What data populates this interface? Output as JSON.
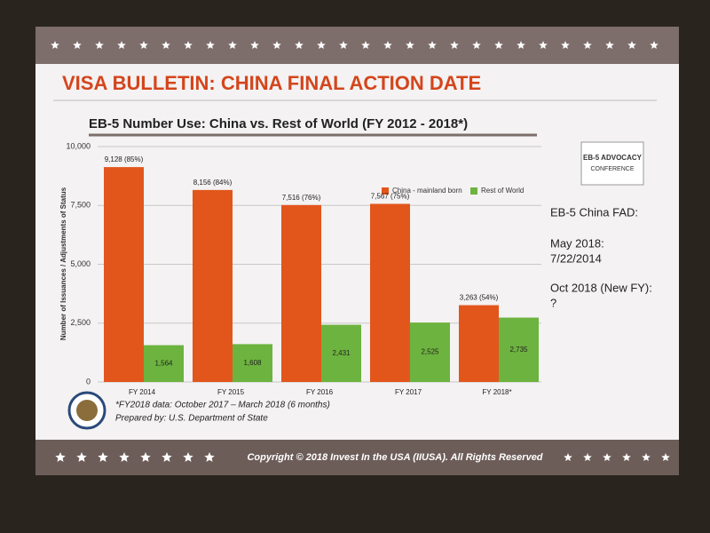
{
  "slide": {
    "title": "VISA BULLETIN: CHINA FINAL ACTION DATE",
    "logo": [
      "EB-5 ADVOCACY",
      "CONFERENCE"
    ],
    "side_notes": [
      "EB-5 China FAD:",
      "May 2018:",
      "7/22/2014",
      "Oct 2018 (New FY):",
      "?"
    ],
    "footnotes": [
      "*FY2018 data: October 2017 – March 2018 (6 months)",
      "Prepared by: U.S. Department of State"
    ],
    "footer": "Copyright © 2018 Invest In the USA (IIUSA). All Rights Reserved"
  },
  "chart_data": {
    "type": "bar",
    "title": "EB-5 Number Use: China vs. Rest of World (FY 2012 - 2018*)",
    "y_label": "Number of Issuances / Adjustments of Status",
    "categories": [
      "FY 2014",
      "FY 2015",
      "FY 2016",
      "FY 2017",
      "FY 2018*"
    ],
    "series": [
      {
        "name": "China - mainland born",
        "color": "#e2561c",
        "values": [
          9128,
          8156,
          7516,
          7567,
          3263
        ],
        "value_labels": [
          "9,128 (85%)",
          "8,156 (84%)",
          "7,516 (76%)",
          "7,567 (75%)",
          "3,263 (54%)"
        ]
      },
      {
        "name": "Rest of World",
        "color": "#6db33f",
        "values": [
          1564,
          1608,
          2431,
          2525,
          2735
        ],
        "value_labels": [
          "1,564",
          "1,608",
          "2,431",
          "2,525",
          "2,735"
        ]
      }
    ],
    "ylim": [
      0,
      10000
    ],
    "yticks": [
      0,
      {
        "value": 2500,
        "label": "2,500"
      },
      {
        "value": 5000,
        "label": "5,000"
      },
      {
        "value": 7500,
        "label": "7,500"
      },
      {
        "value": 10000,
        "label": "10,000"
      }
    ],
    "grid": true,
    "legend": "top-right"
  }
}
